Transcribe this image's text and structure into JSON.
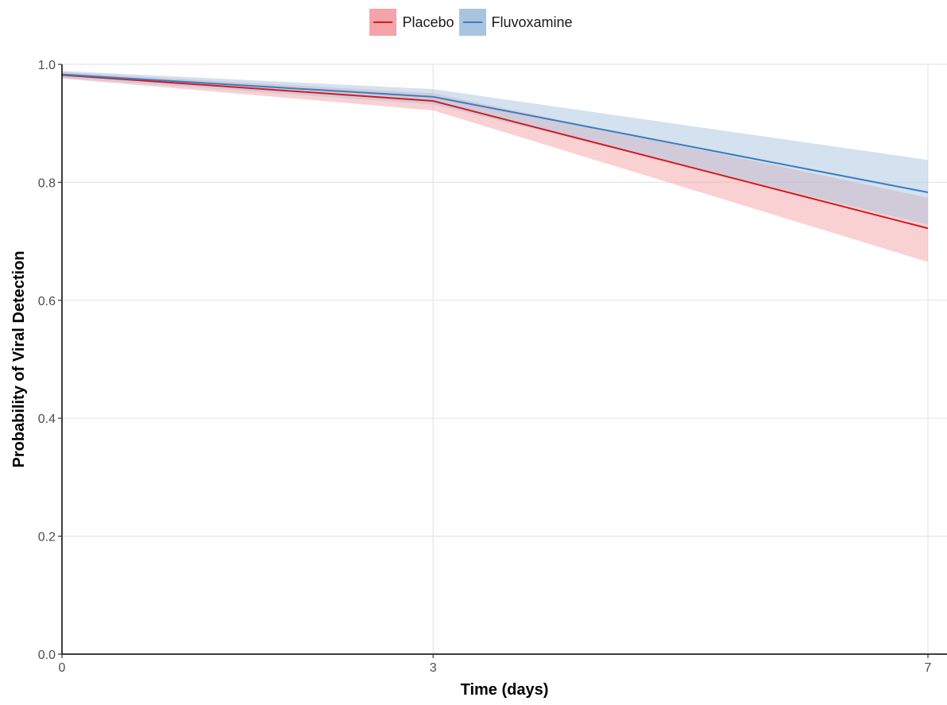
{
  "chart_data": {
    "type": "line",
    "x": [
      0,
      3,
      7
    ],
    "series": [
      {
        "name": "Placebo",
        "values": [
          0.982,
          0.938,
          0.722
        ],
        "ci_lower": [
          0.976,
          0.922,
          0.665
        ],
        "ci_upper": [
          0.987,
          0.951,
          0.774
        ],
        "color": "#d7191c",
        "fill": "#f4a3a8"
      },
      {
        "name": "Fluvoxamine",
        "values": [
          0.983,
          0.945,
          0.783
        ],
        "ci_lower": [
          0.977,
          0.932,
          0.728
        ],
        "ci_upper": [
          0.989,
          0.958,
          0.838
        ],
        "color": "#3a7dbf",
        "fill": "#a9c4df"
      }
    ],
    "xlabel": "Time (days)",
    "ylabel": "Probability of Viral Detection",
    "xticks": [
      "0",
      "3",
      "7"
    ],
    "yticks": [
      "0.0",
      "0.2",
      "0.4",
      "0.6",
      "0.8",
      "1.0"
    ],
    "xlim": [
      0,
      7
    ],
    "ylim": [
      0,
      1
    ],
    "grid": true,
    "legend_position": "top-center"
  }
}
